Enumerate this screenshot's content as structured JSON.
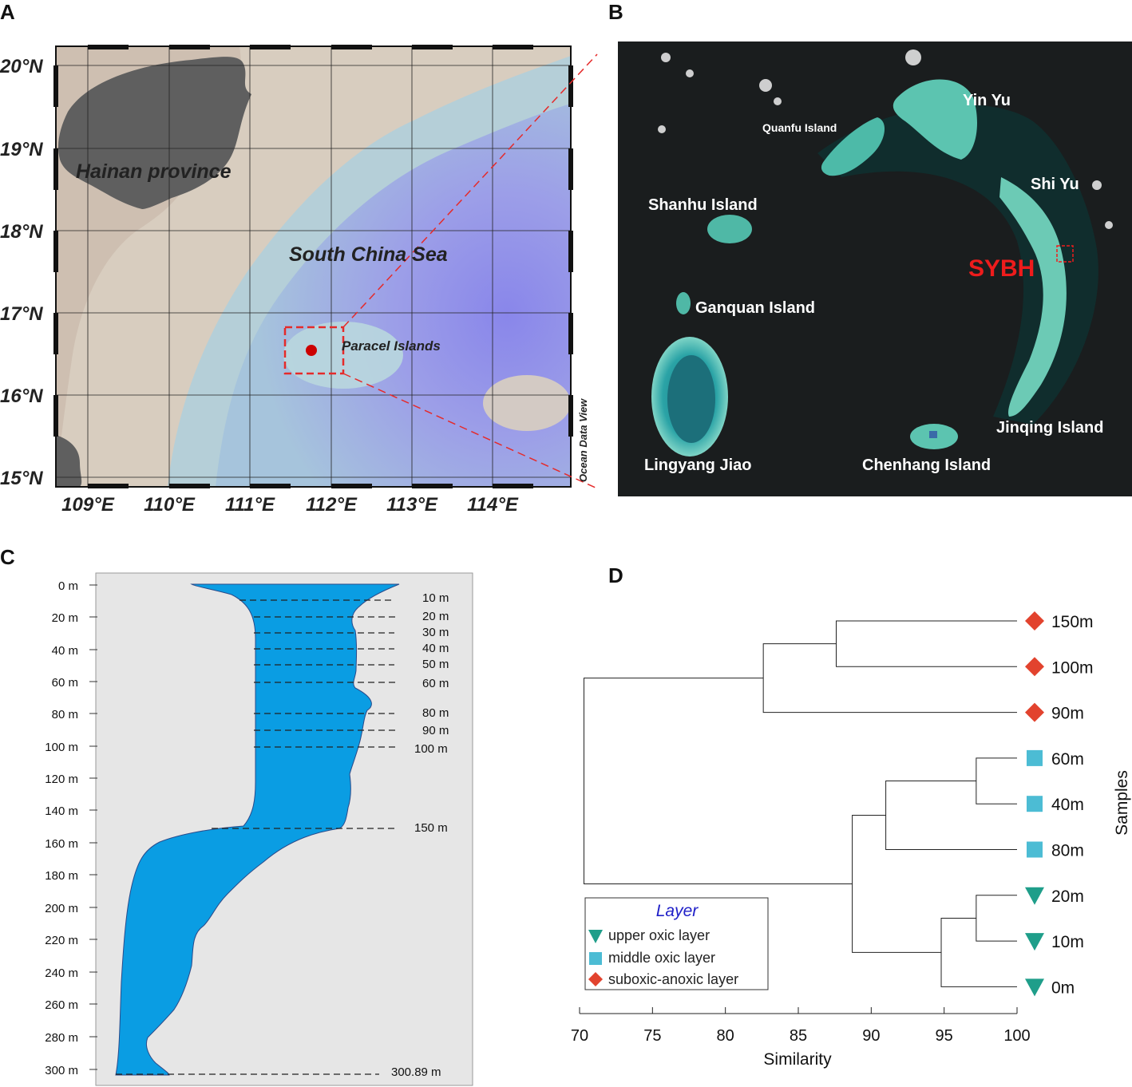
{
  "panels": {
    "a": {
      "letter": "A"
    },
    "b": {
      "letter": "B"
    },
    "c": {
      "letter": "C"
    },
    "d": {
      "letter": "D"
    }
  },
  "map_a": {
    "lat_labels": [
      "20°N",
      "19°N",
      "18°N",
      "17°N",
      "16°N",
      "15°N"
    ],
    "lon_labels": [
      "109°E",
      "110°E",
      "111°E",
      "112°E",
      "113°E",
      "114°E"
    ],
    "land_label": "Hainan province",
    "sea_label": "South China Sea",
    "site_label": "Paracel Islands",
    "credit": "Ocean Data View",
    "colors": {
      "land": "#5f5f5f",
      "shallow": "#d9cfc2",
      "deep": "#8a86e8",
      "marker": "#cc0000",
      "box": "#e52a2a"
    }
  },
  "map_b": {
    "islands": [
      "Yin Yu",
      "Quanfu Island",
      "Shi Yu",
      "Shanhu Island",
      "Ganquan Island",
      "Jinqing Island",
      "Lingyang Jiao",
      "Chenhang Island"
    ],
    "site_label": "SYBH",
    "colors": {
      "site": "#ee1c1c",
      "label": "#ffffff"
    }
  },
  "profile_c": {
    "depth_ticks": [
      "0 m",
      "20 m",
      "40 m",
      "60 m",
      "80 m",
      "100 m",
      "120 m",
      "140 m",
      "160 m",
      "180 m",
      "200 m",
      "220 m",
      "240 m",
      "260 m",
      "280 m",
      "300 m"
    ],
    "sample_labels": [
      "10 m",
      "20 m",
      "30 m",
      "40 m",
      "50 m",
      "60 m",
      "80 m",
      "90 m",
      "100 m",
      "150 m",
      "300.89 m"
    ],
    "colors": {
      "background": "#e6e6e6",
      "water": "#0a9de3"
    }
  },
  "chart_data": {
    "type": "dendrogram",
    "xlabel": "Similarity",
    "ylabel": "Samples",
    "xlim": [
      70,
      100
    ],
    "x_ticks": [
      "70",
      "75",
      "80",
      "85",
      "90",
      "95",
      "100"
    ],
    "leaves": [
      {
        "label": "150m",
        "layer": "suboxic-anoxic layer"
      },
      {
        "label": "100m",
        "layer": "suboxic-anoxic layer"
      },
      {
        "label": "90m",
        "layer": "suboxic-anoxic layer"
      },
      {
        "label": "60m",
        "layer": "middle oxic layer"
      },
      {
        "label": "40m",
        "layer": "middle oxic layer"
      },
      {
        "label": "80m",
        "layer": "middle oxic layer"
      },
      {
        "label": "20m",
        "layer": "upper oxic layer"
      },
      {
        "label": "10m",
        "layer": "upper oxic layer"
      },
      {
        "label": "0m",
        "layer": "upper oxic layer"
      }
    ],
    "merges": [
      {
        "a": 0,
        "b": 1,
        "similarity": 87.6
      },
      {
        "a": 3,
        "b": 4,
        "similarity": 97.2
      },
      {
        "a": 6,
        "b": 7,
        "similarity": 97.2
      },
      {
        "a": "m0",
        "b": 2,
        "similarity": 82.6
      },
      {
        "a": "m1",
        "b": 5,
        "similarity": 91.0
      },
      {
        "a": "m2",
        "b": 8,
        "similarity": 94.8
      },
      {
        "a": "m4",
        "b": "m5",
        "similarity": 88.7
      },
      {
        "a": "m3",
        "b": "m6",
        "similarity": 70.3
      }
    ],
    "legend": {
      "title": "Layer",
      "entries": [
        {
          "label": "upper oxic layer",
          "marker": "triangle-down",
          "color": "#1f9e8a"
        },
        {
          "label": "middle oxic layer",
          "marker": "square",
          "color": "#4cbcd4"
        },
        {
          "label": "suboxic-anoxic layer",
          "marker": "diamond",
          "color": "#e2432e"
        }
      ]
    }
  }
}
